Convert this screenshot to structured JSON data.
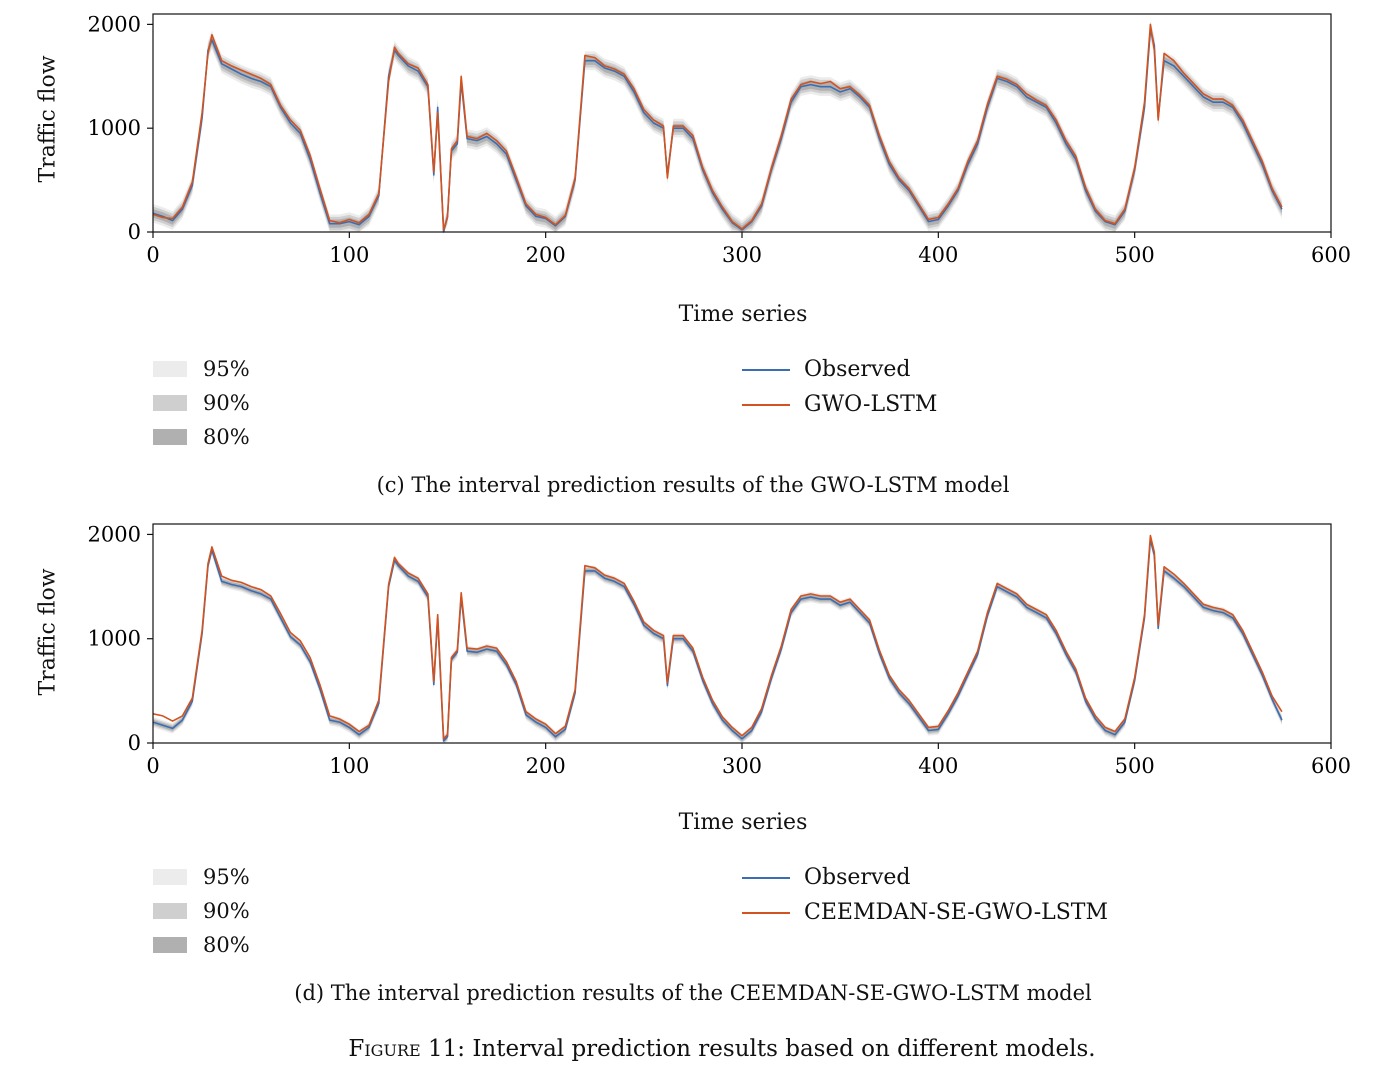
{
  "figure": {
    "label": "Figure 11:",
    "caption": "Interval prediction results based on different models."
  },
  "colors": {
    "observed": "#3b6db3",
    "predicted": "#d2531f",
    "band95": "#ececec",
    "band90": "#cfcfcf",
    "band80": "#b0b0b0"
  },
  "chart_data": [
    {
      "type": "line",
      "subcaption": "(c) The interval prediction results of the GWO-LSTM model",
      "xlabel": "Time series",
      "ylabel": "Traffic flow",
      "xlim": [
        0,
        600
      ],
      "ylim": [
        0,
        2100
      ],
      "x_ticks": [
        0,
        100,
        200,
        300,
        400,
        500,
        600
      ],
      "y_ticks": [
        0,
        1000,
        2000
      ],
      "grid": false,
      "legend_intervals": [
        "95%",
        "90%",
        "80%"
      ],
      "x": [
        0,
        5,
        10,
        15,
        20,
        25,
        28,
        30,
        35,
        40,
        45,
        50,
        55,
        60,
        65,
        70,
        75,
        80,
        85,
        90,
        95,
        100,
        105,
        110,
        115,
        120,
        123,
        125,
        130,
        135,
        140,
        143,
        145,
        148,
        150,
        152,
        155,
        157,
        160,
        165,
        170,
        175,
        180,
        185,
        190,
        195,
        200,
        205,
        210,
        215,
        220,
        225,
        230,
        235,
        240,
        245,
        250,
        255,
        260,
        262,
        265,
        270,
        275,
        280,
        285,
        290,
        295,
        300,
        305,
        310,
        315,
        320,
        325,
        330,
        335,
        340,
        345,
        350,
        355,
        360,
        365,
        370,
        375,
        380,
        385,
        390,
        395,
        400,
        405,
        410,
        415,
        420,
        425,
        430,
        435,
        440,
        445,
        450,
        455,
        460,
        465,
        470,
        475,
        480,
        485,
        490,
        495,
        500,
        505,
        508,
        510,
        512,
        515,
        520,
        525,
        530,
        535,
        540,
        545,
        550,
        555,
        560,
        565,
        570,
        575
      ],
      "series": [
        {
          "name": "Observed",
          "values": [
            180,
            150,
            110,
            220,
            450,
            1100,
            1750,
            1850,
            1620,
            1570,
            1520,
            1480,
            1450,
            1400,
            1200,
            1050,
            950,
            700,
            380,
            80,
            80,
            100,
            70,
            150,
            350,
            1500,
            1750,
            1700,
            1600,
            1550,
            1400,
            550,
            1200,
            0,
            150,
            780,
            850,
            1450,
            900,
            880,
            920,
            850,
            750,
            500,
            250,
            150,
            130,
            60,
            150,
            500,
            1650,
            1650,
            1580,
            1550,
            1500,
            1350,
            1150,
            1050,
            1000,
            550,
            1000,
            1000,
            900,
            600,
            380,
            220,
            90,
            20,
            100,
            250,
            600,
            900,
            1250,
            1400,
            1420,
            1400,
            1400,
            1350,
            1380,
            1300,
            1200,
            900,
            650,
            500,
            400,
            250,
            100,
            120,
            250,
            400,
            650,
            850,
            1200,
            1480,
            1450,
            1400,
            1300,
            1250,
            1200,
            1050,
            850,
            700,
            400,
            200,
            100,
            70,
            200,
            600,
            1200,
            1950,
            1800,
            1100,
            1650,
            1600,
            1500,
            1400,
            1300,
            1250,
            1250,
            1200,
            1050,
            850,
            650,
            400,
            220
          ],
          "band_halfwidth": {
            "95%": 90,
            "90%": 65,
            "80%": 40
          }
        },
        {
          "name": "GWO-LSTM",
          "values": [
            170,
            140,
            130,
            240,
            480,
            1150,
            1720,
            1900,
            1650,
            1600,
            1560,
            1520,
            1480,
            1420,
            1220,
            1080,
            980,
            740,
            420,
            110,
            90,
            120,
            90,
            170,
            370,
            1450,
            1780,
            1720,
            1620,
            1580,
            1420,
            580,
            1150,
            20,
            140,
            800,
            880,
            1500,
            920,
            900,
            950,
            880,
            780,
            530,
            270,
            170,
            140,
            70,
            160,
            520,
            1700,
            1680,
            1600,
            1570,
            1520,
            1380,
            1180,
            1080,
            1020,
            520,
            1020,
            1020,
            930,
            620,
            400,
            240,
            100,
            30,
            110,
            270,
            620,
            930,
            1280,
            1420,
            1450,
            1430,
            1450,
            1380,
            1400,
            1320,
            1220,
            930,
            680,
            520,
            420,
            270,
            120,
            140,
            270,
            420,
            680,
            880,
            1230,
            1500,
            1470,
            1420,
            1330,
            1270,
            1220,
            1080,
            880,
            730,
            430,
            220,
            110,
            80,
            220,
            620,
            1250,
            2000,
            1750,
            1080,
            1720,
            1650,
            1530,
            1430,
            1330,
            1280,
            1280,
            1220,
            1080,
            880,
            680,
            420,
            240
          ]
        }
      ]
    },
    {
      "type": "line",
      "subcaption": "(d) The interval prediction results of the CEEMDAN-SE-GWO-LSTM model",
      "xlabel": "Time series",
      "ylabel": "Traffic flow",
      "xlim": [
        0,
        600
      ],
      "ylim": [
        0,
        2100
      ],
      "x_ticks": [
        0,
        100,
        200,
        300,
        400,
        500,
        600
      ],
      "y_ticks": [
        0,
        1000,
        2000
      ],
      "grid": false,
      "legend_intervals": [
        "95%",
        "90%",
        "80%"
      ],
      "x": [
        0,
        5,
        10,
        15,
        20,
        25,
        28,
        30,
        35,
        40,
        45,
        50,
        55,
        60,
        65,
        70,
        75,
        80,
        85,
        90,
        95,
        100,
        105,
        110,
        115,
        120,
        123,
        125,
        130,
        135,
        140,
        143,
        145,
        148,
        150,
        152,
        155,
        157,
        160,
        165,
        170,
        175,
        180,
        185,
        190,
        195,
        200,
        205,
        210,
        215,
        220,
        225,
        230,
        235,
        240,
        245,
        250,
        255,
        260,
        262,
        265,
        270,
        275,
        280,
        285,
        290,
        295,
        300,
        305,
        310,
        315,
        320,
        325,
        330,
        335,
        340,
        345,
        350,
        355,
        360,
        365,
        370,
        375,
        380,
        385,
        390,
        395,
        400,
        405,
        410,
        415,
        420,
        425,
        430,
        435,
        440,
        445,
        450,
        455,
        460,
        465,
        470,
        475,
        480,
        485,
        490,
        495,
        500,
        505,
        508,
        510,
        512,
        515,
        520,
        525,
        530,
        535,
        540,
        545,
        550,
        555,
        560,
        565,
        570,
        575
      ],
      "series": [
        {
          "name": "Observed",
          "values": [
            200,
            170,
            140,
            220,
            400,
            1050,
            1700,
            1850,
            1550,
            1520,
            1500,
            1460,
            1430,
            1380,
            1200,
            1020,
            940,
            780,
            520,
            220,
            200,
            150,
            80,
            150,
            380,
            1500,
            1750,
            1700,
            1600,
            1550,
            1400,
            560,
            1200,
            20,
            60,
            800,
            870,
            1400,
            880,
            870,
            900,
            880,
            750,
            560,
            270,
            200,
            150,
            60,
            130,
            480,
            1650,
            1650,
            1580,
            1550,
            1500,
            1330,
            1130,
            1050,
            1000,
            550,
            1000,
            1000,
            880,
            600,
            380,
            220,
            120,
            40,
            120,
            300,
            620,
            900,
            1250,
            1380,
            1400,
            1380,
            1380,
            1320,
            1350,
            1250,
            1150,
            860,
            620,
            480,
            380,
            250,
            120,
            130,
            280,
            450,
            650,
            850,
            1220,
            1500,
            1450,
            1400,
            1300,
            1250,
            1200,
            1050,
            850,
            680,
            400,
            230,
            120,
            80,
            200,
            600,
            1200,
            1950,
            1800,
            1100,
            1650,
            1580,
            1500,
            1400,
            1300,
            1270,
            1250,
            1200,
            1050,
            850,
            650,
            420,
            220
          ],
          "band_halfwidth": {
            "95%": 50,
            "90%": 35,
            "80%": 22
          }
        },
        {
          "name": "CEEMDAN-SE-GWO-LSTM",
          "values": [
            280,
            260,
            210,
            260,
            430,
            1080,
            1720,
            1880,
            1600,
            1560,
            1540,
            1500,
            1470,
            1410,
            1240,
            1060,
            980,
            820,
            560,
            260,
            230,
            180,
            110,
            170,
            410,
            1520,
            1780,
            1720,
            1630,
            1580,
            1430,
            590,
            1230,
            40,
            80,
            820,
            890,
            1440,
            910,
            900,
            930,
            910,
            780,
            590,
            300,
            230,
            180,
            90,
            160,
            510,
            1700,
            1680,
            1610,
            1580,
            1530,
            1360,
            1160,
            1080,
            1030,
            580,
            1030,
            1030,
            910,
            630,
            410,
            250,
            150,
            70,
            150,
            330,
            650,
            930,
            1280,
            1410,
            1430,
            1410,
            1410,
            1350,
            1380,
            1280,
            1180,
            890,
            650,
            510,
            410,
            280,
            150,
            160,
            310,
            480,
            680,
            880,
            1250,
            1530,
            1480,
            1430,
            1330,
            1280,
            1230,
            1080,
            880,
            710,
            430,
            260,
            150,
            110,
            230,
            630,
            1230,
            1990,
            1830,
            1130,
            1690,
            1620,
            1530,
            1430,
            1330,
            1300,
            1280,
            1230,
            1080,
            880,
            680,
            450,
            300
          ]
        }
      ]
    }
  ]
}
